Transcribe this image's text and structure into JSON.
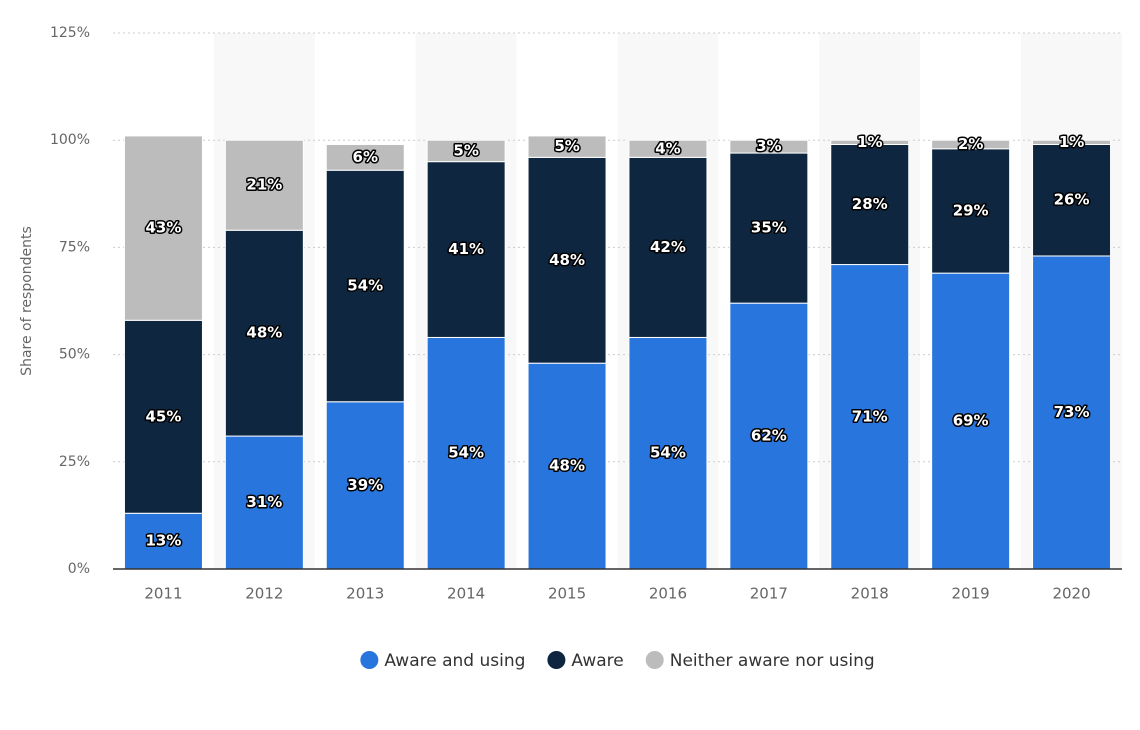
{
  "chart_data": {
    "type": "stacked_bar",
    "y_label": "Share of respondents",
    "categories": [
      "2011",
      "2012",
      "2013",
      "2014",
      "2015",
      "2016",
      "2017",
      "2018",
      "2019",
      "2020"
    ],
    "series": [
      {
        "name": "Aware and using",
        "color": "#2876dd",
        "values": [
          13,
          31,
          39,
          54,
          48,
          54,
          62,
          71,
          69,
          73
        ],
        "value_labels": [
          "13%",
          "31%",
          "39%",
          "54%",
          "48%",
          "54%",
          "62%",
          "71%",
          "69%",
          "73%"
        ]
      },
      {
        "name": "Aware",
        "color": "#0f2640",
        "values": [
          45,
          48,
          54,
          41,
          48,
          42,
          35,
          28,
          29,
          26
        ],
        "value_labels": [
          "45%",
          "48%",
          "54%",
          "41%",
          "48%",
          "42%",
          "35%",
          "28%",
          "29%",
          "26%"
        ]
      },
      {
        "name": "Neither aware nor using",
        "color": "#bcbcbc",
        "values": [
          43,
          21,
          6,
          5,
          5,
          4,
          3,
          1,
          2,
          1
        ],
        "value_labels": [
          "43%",
          "21%",
          "6%",
          "5%",
          "5%",
          "4%",
          "3%",
          "1%",
          "2%",
          "1%"
        ]
      }
    ],
    "ylim": [
      0,
      125
    ],
    "yticks": [
      {
        "value": 0,
        "label": "0%"
      },
      {
        "value": 25,
        "label": "25%"
      },
      {
        "value": 50,
        "label": "50%"
      },
      {
        "value": 75,
        "label": "75%"
      },
      {
        "value": 100,
        "label": "100%"
      },
      {
        "value": 125,
        "label": "125%"
      }
    ],
    "grid": true,
    "legend": "bottom"
  }
}
